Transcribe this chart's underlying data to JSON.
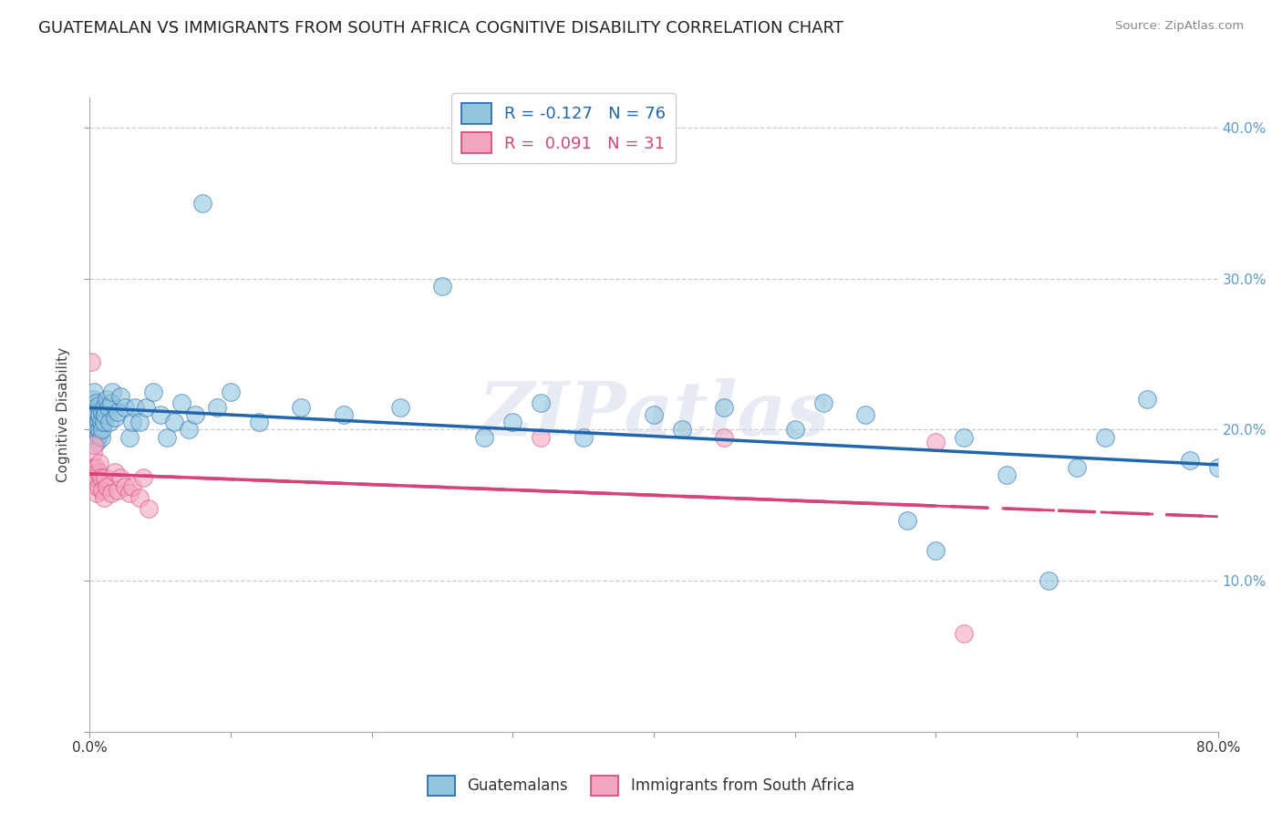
{
  "title": "GUATEMALAN VS IMMIGRANTS FROM SOUTH AFRICA COGNITIVE DISABILITY CORRELATION CHART",
  "source": "Source: ZipAtlas.com",
  "ylabel": "Cognitive Disability",
  "xlim": [
    0.0,
    0.8
  ],
  "ylim": [
    0.0,
    0.42
  ],
  "ytick_positions": [
    0.0,
    0.1,
    0.2,
    0.3,
    0.4
  ],
  "right_ytick_labels": [
    "",
    "10.0%",
    "20.0%",
    "30.0%",
    "40.0%"
  ],
  "xtick_positions": [
    0.0,
    0.8
  ],
  "xtick_labels": [
    "0.0%",
    "80.0%"
  ],
  "blue_R": -0.127,
  "blue_N": 76,
  "pink_R": 0.091,
  "pink_N": 31,
  "blue_color": "#92c5de",
  "pink_color": "#f4a6c0",
  "blue_line_color": "#2166ac",
  "pink_line_color": "#d6437a",
  "watermark": "ZIPatlas",
  "legend_label_blue": "Guatemalans",
  "legend_label_pink": "Immigrants from South Africa",
  "blue_x": [
    0.001,
    0.001,
    0.002,
    0.002,
    0.002,
    0.003,
    0.003,
    0.003,
    0.003,
    0.004,
    0.004,
    0.004,
    0.005,
    0.005,
    0.005,
    0.006,
    0.006,
    0.006,
    0.007,
    0.007,
    0.008,
    0.008,
    0.009,
    0.009,
    0.01,
    0.01,
    0.011,
    0.012,
    0.013,
    0.014,
    0.015,
    0.016,
    0.018,
    0.02,
    0.022,
    0.025,
    0.028,
    0.03,
    0.032,
    0.035,
    0.04,
    0.045,
    0.05,
    0.055,
    0.06,
    0.065,
    0.07,
    0.075,
    0.08,
    0.09,
    0.1,
    0.12,
    0.15,
    0.18,
    0.22,
    0.25,
    0.28,
    0.3,
    0.32,
    0.35,
    0.4,
    0.42,
    0.45,
    0.5,
    0.52,
    0.55,
    0.58,
    0.6,
    0.62,
    0.65,
    0.68,
    0.7,
    0.72,
    0.75,
    0.78,
    0.8
  ],
  "blue_y": [
    0.205,
    0.215,
    0.2,
    0.21,
    0.22,
    0.195,
    0.205,
    0.215,
    0.225,
    0.198,
    0.208,
    0.218,
    0.192,
    0.202,
    0.212,
    0.196,
    0.206,
    0.216,
    0.2,
    0.21,
    0.195,
    0.205,
    0.2,
    0.212,
    0.205,
    0.215,
    0.21,
    0.22,
    0.215,
    0.205,
    0.218,
    0.225,
    0.208,
    0.212,
    0.222,
    0.215,
    0.195,
    0.205,
    0.215,
    0.205,
    0.215,
    0.225,
    0.21,
    0.195,
    0.205,
    0.218,
    0.2,
    0.21,
    0.35,
    0.215,
    0.225,
    0.205,
    0.215,
    0.21,
    0.215,
    0.295,
    0.195,
    0.205,
    0.218,
    0.195,
    0.21,
    0.2,
    0.215,
    0.2,
    0.218,
    0.21,
    0.14,
    0.12,
    0.195,
    0.17,
    0.1,
    0.175,
    0.195,
    0.22,
    0.18,
    0.175
  ],
  "pink_x": [
    0.001,
    0.002,
    0.002,
    0.003,
    0.003,
    0.004,
    0.004,
    0.005,
    0.005,
    0.006,
    0.006,
    0.007,
    0.008,
    0.009,
    0.01,
    0.011,
    0.012,
    0.015,
    0.018,
    0.02,
    0.022,
    0.025,
    0.028,
    0.03,
    0.035,
    0.038,
    0.042,
    0.32,
    0.45,
    0.6,
    0.62
  ],
  "pink_y": [
    0.245,
    0.185,
    0.175,
    0.17,
    0.19,
    0.162,
    0.175,
    0.158,
    0.168,
    0.162,
    0.172,
    0.178,
    0.168,
    0.16,
    0.155,
    0.168,
    0.162,
    0.158,
    0.172,
    0.16,
    0.168,
    0.162,
    0.158,
    0.162,
    0.155,
    0.168,
    0.148,
    0.195,
    0.195,
    0.192,
    0.065
  ],
  "grid_color": "#cccccc",
  "background_color": "#ffffff",
  "title_fontsize": 13,
  "axis_label_fontsize": 11,
  "tick_fontsize": 11,
  "right_tick_color": "#5b9bd5"
}
